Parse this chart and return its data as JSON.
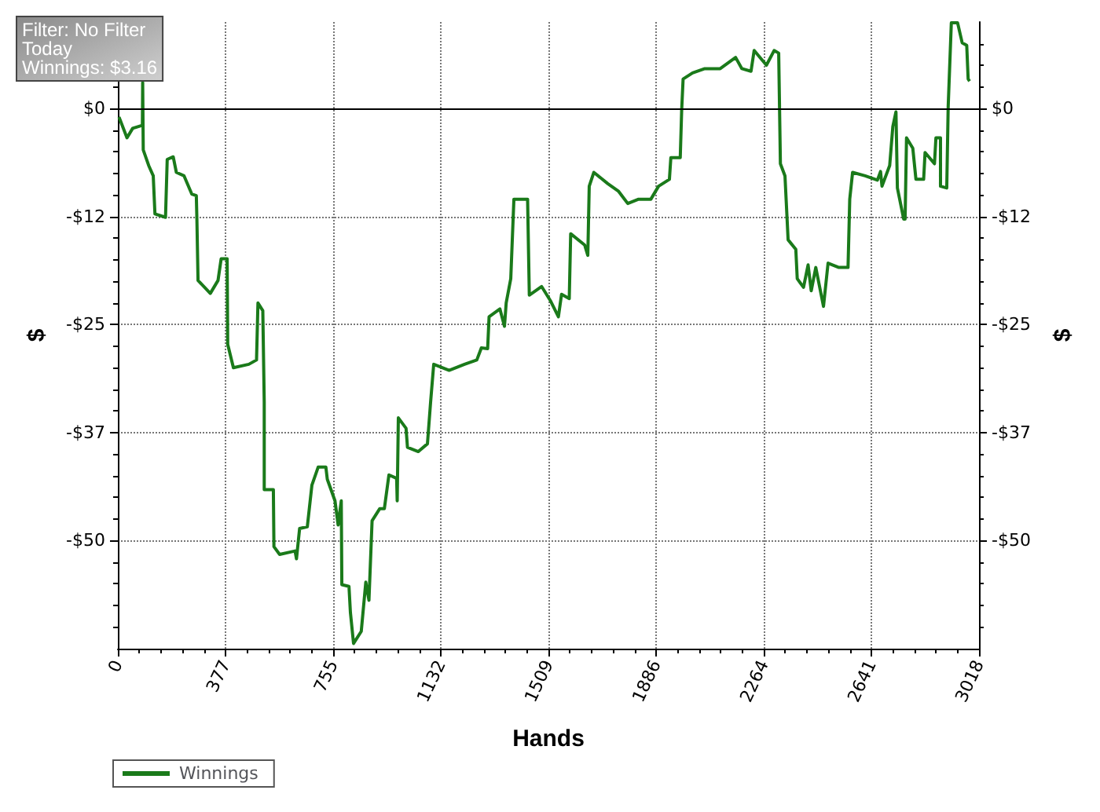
{
  "chart_data": {
    "type": "line",
    "xlabel": "Hands",
    "ylabel": "$",
    "y2label": "$",
    "annotations": [
      "Filter: No Filter",
      "Today",
      "Winnings: $3.16"
    ],
    "xlim": [
      0,
      3018
    ],
    "xticks": [
      0,
      {
        "value": 377.25,
        "label": "377"
      },
      {
        "value": 754.5,
        "label": "755"
      },
      {
        "value": 1131.75,
        "label": "1132"
      },
      {
        "value": 1509,
        "label": "1509"
      },
      {
        "value": 1886.25,
        "label": "1886"
      },
      {
        "value": 2263.5,
        "label": "2264"
      },
      {
        "value": 2640.75,
        "label": "2641"
      },
      3018
    ],
    "ylim": [
      -62.5,
      10
    ],
    "yticks": [
      {
        "value": -50,
        "label": "-$50"
      },
      {
        "value": -37.5,
        "label": "-$37"
      },
      {
        "value": -25,
        "label": "-$25"
      },
      {
        "value": -12.5,
        "label": "-$12"
      },
      {
        "value": 0,
        "label": "$0"
      }
    ],
    "y2lim": [
      -62.5,
      10
    ],
    "y2ticks": [
      {
        "value": -50,
        "label": "-$50"
      },
      {
        "value": -37.5,
        "label": "-$37"
      },
      {
        "value": -25,
        "label": "-$25"
      },
      {
        "value": -12.5,
        "label": "-$12"
      },
      {
        "value": 0,
        "label": "$0"
      }
    ],
    "grid": true,
    "legend": "bottom left",
    "marker": "none",
    "line_style": "solid",
    "ref_lines": [
      {
        "axis": "y",
        "value": 0,
        "color": "#000000"
      }
    ],
    "x": [
      4,
      32,
      52,
      81,
      86,
      87,
      89,
      108,
      124,
      130,
      167,
      173,
      194,
      205,
      232,
      259,
      275,
      277,
      281,
      324,
      351,
      362,
      383,
      385,
      405,
      459,
      486,
      491,
      508,
      513,
      513,
      545,
      547,
      567,
      621,
      626,
      637,
      664,
      680,
      702,
      729,
      734,
      761,
      772,
      783,
      785,
      810,
      815,
      826,
      853,
      869,
      880,
      891,
      918,
      934,
      950,
      977,
      979,
      983,
      1010,
      1015,
      1053,
      1085,
      1096,
      1107,
      1161,
      1215,
      1258,
      1274,
      1296,
      1301,
      1339,
      1355,
      1361,
      1377,
      1388,
      1436,
      1442,
      1485,
      1517,
      1544,
      1555,
      1582,
      1587,
      1636,
      1647,
      1652,
      1668,
      1717,
      1755,
      1787,
      1825,
      1868,
      1895,
      1933,
      1938,
      1971,
      1976,
      1981,
      2014,
      2057,
      2111,
      2165,
      2187,
      2219,
      2230,
      2273,
      2300,
      2316,
      2322,
      2338,
      2349,
      2376,
      2381,
      2403,
      2419,
      2430,
      2446,
      2473,
      2489,
      2527,
      2559,
      2565,
      2575,
      2619,
      2662,
      2673,
      2678,
      2705,
      2716,
      2727,
      2732,
      2754,
      2759,
      2764,
      2786,
      2797,
      2824,
      2829,
      2862,
      2867,
      2883,
      2883,
      2905,
      2910,
      2921,
      2943,
      2959,
      2975,
      2980,
      2985
    ],
    "series": [
      {
        "name": "Winnings",
        "color": "#1a7a1a",
        "values": [
          -1.0,
          -3.4,
          -2.3,
          -2.0,
          -2.0,
          3.0,
          -4.8,
          -6.6,
          -7.8,
          -12.2,
          -12.6,
          -5.9,
          -5.6,
          -7.4,
          -7.8,
          -9.9,
          -10.1,
          -12.8,
          -19.9,
          -21.4,
          -19.9,
          -17.4,
          -17.4,
          -27.3,
          -30.0,
          -29.6,
          -29.1,
          -22.5,
          -23.4,
          -34.0,
          -44.1,
          -44.1,
          -50.7,
          -51.6,
          -51.2,
          -52.1,
          -48.6,
          -48.4,
          -43.6,
          -41.5,
          -41.5,
          -42.9,
          -45.4,
          -48.2,
          -45.4,
          -55.1,
          -55.3,
          -58.3,
          -61.9,
          -60.5,
          -54.8,
          -56.9,
          -47.7,
          -46.3,
          -46.3,
          -42.4,
          -42.8,
          -45.4,
          -35.8,
          -37.0,
          -39.2,
          -39.7,
          -38.8,
          -34.0,
          -29.6,
          -30.3,
          -29.6,
          -29.1,
          -27.7,
          -27.8,
          -24.1,
          -23.2,
          -25.2,
          -22.5,
          -19.7,
          -10.5,
          -10.5,
          -21.6,
          -20.6,
          -22.3,
          -24.1,
          -21.5,
          -22.0,
          -14.5,
          -15.8,
          -17.0,
          -9.0,
          -7.4,
          -8.7,
          -9.6,
          -11.0,
          -10.5,
          -10.5,
          -9.0,
          -8.2,
          -5.7,
          -5.7,
          -0.2,
          3.4,
          4.1,
          4.6,
          4.6,
          5.9,
          4.6,
          4.3,
          6.7,
          5.0,
          6.7,
          6.4,
          -6.4,
          -7.8,
          -15.2,
          -16.3,
          -19.7,
          -20.7,
          -18.1,
          -21.1,
          -18.4,
          -22.9,
          -17.9,
          -18.4,
          -18.4,
          -10.5,
          -7.4,
          -7.8,
          -8.3,
          -7.3,
          -9.0,
          -6.6,
          -2.1,
          -0.4,
          -9.2,
          -12.8,
          -12.8,
          -3.4,
          -4.6,
          -8.2,
          -8.2,
          -5.1,
          -6.4,
          -3.4,
          -3.4,
          -9.0,
          -9.2,
          0.2,
          9.9,
          9.9,
          7.6,
          7.3,
          3.4,
          3.16
        ]
      }
    ]
  }
}
